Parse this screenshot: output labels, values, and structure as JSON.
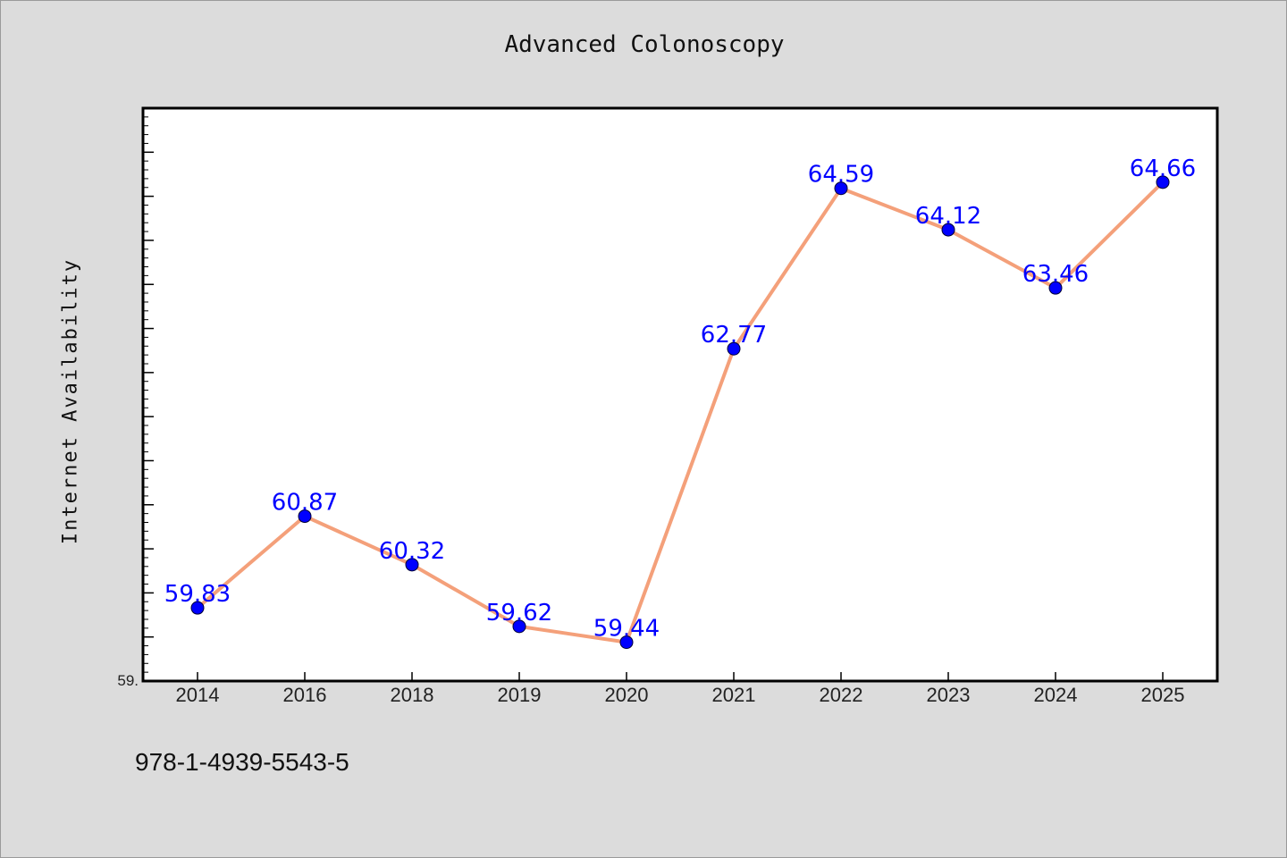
{
  "chart_data": {
    "type": "line",
    "title": "Advanced Colonoscopy",
    "xlabel": "",
    "ylabel": "Internet Availability",
    "categories": [
      "2014",
      "2016",
      "2018",
      "2019",
      "2020",
      "2021",
      "2022",
      "2023",
      "2024",
      "2025"
    ],
    "values": [
      59.83,
      60.87,
      60.32,
      59.62,
      59.44,
      62.77,
      64.59,
      64.12,
      63.46,
      64.66
    ],
    "data_labels": [
      "59.83",
      "60.87",
      "60.32",
      "59.62",
      "59.44",
      "62.77",
      "64.59",
      "64.12",
      "63.46",
      "64.66"
    ],
    "ylim": [
      59.0,
      65.5
    ],
    "y_min_label": "59.",
    "grid": false,
    "legend": "none",
    "colors": {
      "line": "#f4a07a",
      "marker": "#0000ff",
      "data_label": "#0000ff",
      "plot_background": "#ffffff",
      "figure_background": "#dcdcdc"
    }
  },
  "footer": {
    "code": "978-1-4939-5543-5"
  }
}
